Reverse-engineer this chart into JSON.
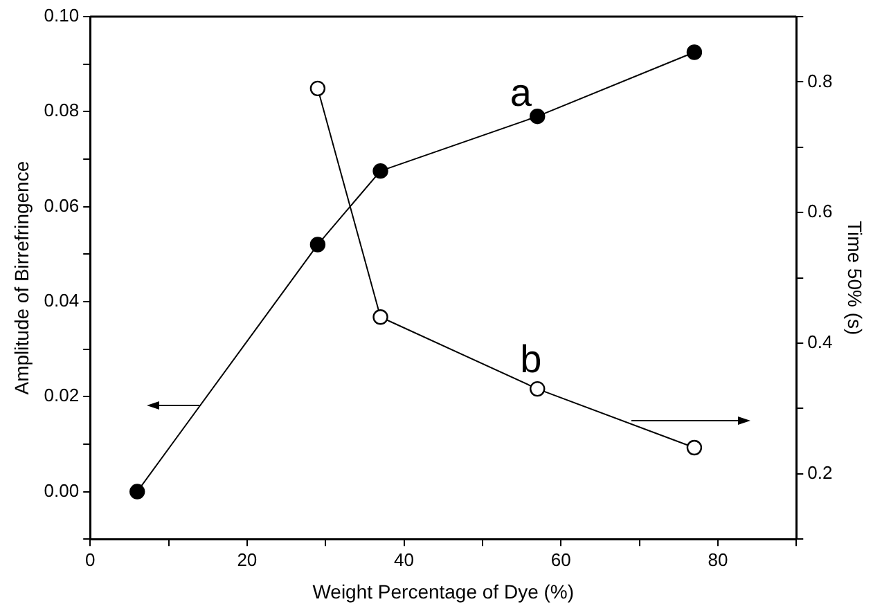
{
  "chart_data": {
    "type": "line",
    "xlabel": "Weight Percentage of Dye (%)",
    "ylabel": "Amplitude of Birrefringence",
    "y2label": "Time 50% (s)",
    "xlim": [
      0,
      90
    ],
    "xticks": [
      0,
      {
        "value": 10,
        "label": null
      },
      20,
      {
        "value": 30,
        "label": null
      },
      40,
      {
        "value": 50,
        "label": null
      },
      60,
      {
        "value": 70,
        "label": null
      },
      80,
      {
        "value": 90,
        "label": null
      }
    ],
    "ylim": [
      -0.01,
      0.1
    ],
    "yticks": [
      {
        "value": -0.01,
        "label": null
      },
      {
        "value": 0,
        "label": "0.00"
      },
      {
        "value": 0.01,
        "label": null
      },
      {
        "value": 0.02,
        "label": "0.02"
      },
      {
        "value": 0.03,
        "label": null
      },
      {
        "value": 0.04,
        "label": "0.04"
      },
      {
        "value": 0.05,
        "label": null
      },
      {
        "value": 0.06,
        "label": "0.06"
      },
      {
        "value": 0.07,
        "label": null
      },
      {
        "value": 0.08,
        "label": "0.08"
      },
      {
        "value": 0.09,
        "label": null
      },
      {
        "value": 0.1,
        "label": "0.10"
      }
    ],
    "y2lim": [
      0.1,
      0.9
    ],
    "y2ticks": [
      {
        "value": 0.1,
        "label": null
      },
      0.2,
      {
        "value": 0.3,
        "label": null
      },
      0.4,
      {
        "value": 0.5,
        "label": null
      },
      0.6,
      {
        "value": 0.7,
        "label": null
      },
      0.8,
      {
        "value": 0.9,
        "label": null
      }
    ],
    "series": [
      {
        "color": "#000000",
        "x": [
          6,
          29,
          37,
          57,
          77
        ],
        "values": [
          0,
          0.052,
          0.0675,
          0.079,
          0.0925
        ]
      },
      {
        "color": "#000000",
        "axis": "y2",
        "x": [
          29,
          37,
          57,
          77
        ],
        "values": [
          0.79,
          0.44,
          0.33,
          0.24
        ]
      }
    ],
    "marker": "circle",
    "line_style": "solid",
    "grid": false,
    "legend": false,
    "annotations": [
      "a",
      "b"
    ]
  }
}
